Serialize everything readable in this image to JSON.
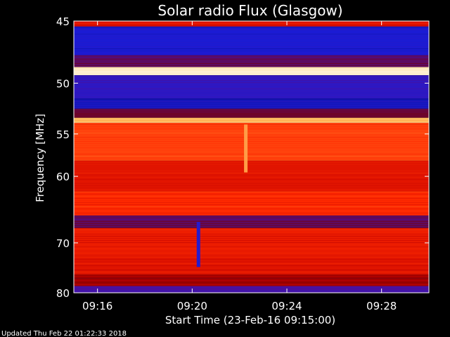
{
  "chart_data": {
    "type": "heatmap",
    "title": "Solar radio Flux (Glasgow)",
    "xlabel": "Start Time (23-Feb-16 09:15:00)",
    "ylabel": "Frequency [MHz]",
    "xlim": [
      "09:15:00",
      "09:30:00"
    ],
    "ylim": [
      45,
      80
    ],
    "y_scale": "reciprocal",
    "x_ticks": [
      "09:16",
      "09:20",
      "09:24",
      "09:28"
    ],
    "y_ticks": [
      45,
      50,
      55,
      60,
      70,
      80
    ],
    "colormap": [
      "#00004a",
      "#1c1cd8",
      "#4a10a0",
      "#7a0000",
      "#c40000",
      "#ff2a00",
      "#ff7a2a",
      "#ffd070",
      "#ffffff"
    ],
    "frequency_bands": [
      {
        "from": 45.0,
        "to": 45.4,
        "level": 0.55
      },
      {
        "from": 45.4,
        "to": 47.6,
        "level": 0.12
      },
      {
        "from": 47.6,
        "to": 48.6,
        "level": 0.3
      },
      {
        "from": 48.6,
        "to": 49.3,
        "level": 0.95
      },
      {
        "from": 49.3,
        "to": 51.4,
        "level": 0.18
      },
      {
        "from": 51.4,
        "to": 52.4,
        "level": 0.1
      },
      {
        "from": 52.4,
        "to": 53.3,
        "level": 0.34
      },
      {
        "from": 53.3,
        "to": 53.8,
        "level": 0.85
      },
      {
        "from": 53.8,
        "to": 58.0,
        "level": 0.66
      },
      {
        "from": 58.0,
        "to": 62.0,
        "level": 0.56
      },
      {
        "from": 62.0,
        "to": 65.5,
        "level": 0.62
      },
      {
        "from": 65.5,
        "to": 67.5,
        "level": 0.3
      },
      {
        "from": 67.5,
        "to": 72.5,
        "level": 0.58
      },
      {
        "from": 72.5,
        "to": 76.0,
        "level": 0.56
      },
      {
        "from": 76.0,
        "to": 78.5,
        "level": 0.44
      },
      {
        "from": 78.5,
        "to": 80.0,
        "level": 0.24
      }
    ],
    "events": [
      {
        "name": "burst",
        "time": "09:20:15",
        "f_from": 66.5,
        "f_to": 74.5,
        "level": 0.15
      },
      {
        "name": "burst",
        "time": "09:22:15",
        "f_from": 54.0,
        "f_to": 59.5,
        "level": 0.8
      }
    ],
    "grid": false,
    "colorbar": false
  },
  "footer": {
    "updated": "Updated Thu Feb 22 01:22:33 2018"
  }
}
